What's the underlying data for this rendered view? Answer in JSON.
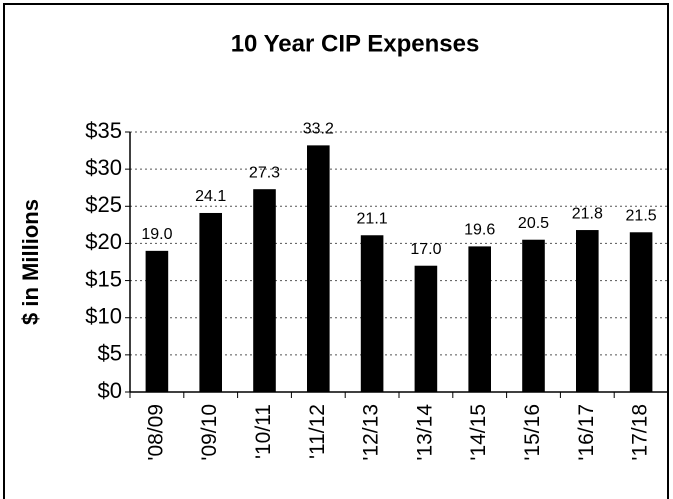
{
  "chart_data": {
    "type": "bar",
    "title": "10 Year CIP Expenses",
    "y_label": "$ in Millions",
    "categories": [
      "'08/09",
      "'09/10",
      "'10/11",
      "'11/12",
      "'12/13",
      "'13/14",
      "'14/15",
      "'15/16",
      "'16/17",
      "'17/18"
    ],
    "values": [
      19.0,
      24.1,
      27.3,
      33.2,
      21.1,
      17.0,
      19.6,
      20.5,
      21.8,
      21.5
    ],
    "value_labels": [
      "19.0",
      "24.1",
      "27.3",
      "33.2",
      "21.1",
      "17.0",
      "19.6",
      "20.5",
      "21.8",
      "21.5"
    ],
    "color": "#000000",
    "ylim": [
      0,
      35
    ],
    "yticks": [
      {
        "value": 0,
        "label": "$0"
      },
      {
        "value": 5,
        "label": "$5"
      },
      {
        "value": 10,
        "label": "$10"
      },
      {
        "value": 15,
        "label": "$15"
      },
      {
        "value": 20,
        "label": "$20"
      },
      {
        "value": 25,
        "label": "$25"
      },
      {
        "value": 30,
        "label": "$30"
      },
      {
        "value": 35,
        "label": "$35"
      }
    ],
    "grid": true
  }
}
